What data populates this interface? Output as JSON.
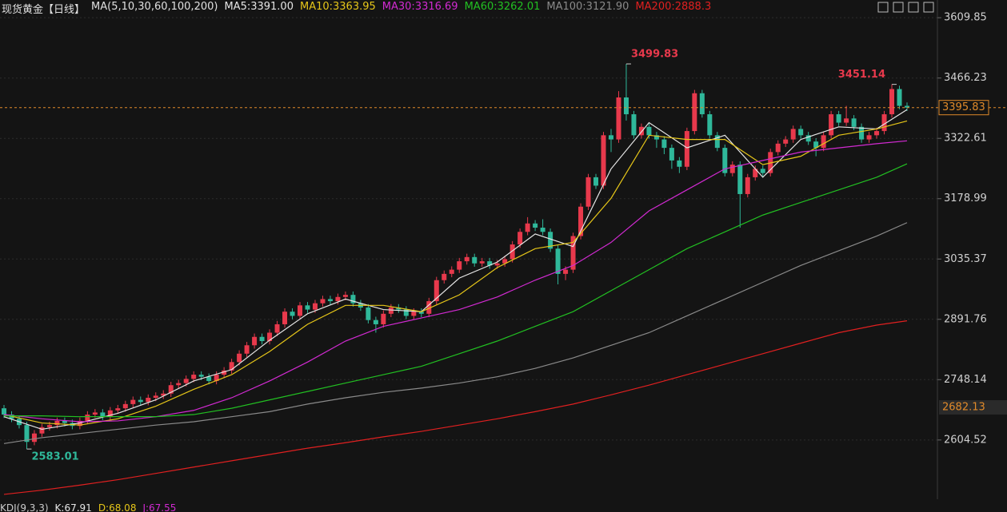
{
  "chart_data": {
    "type": "candlestick",
    "title": "现货黄金【日线】",
    "ma_title": "MA(5,10,30,60,100,200)",
    "up_color": "#e8394c",
    "down_color": "#2fb89a",
    "ylim": [
      2473,
      3652
    ],
    "yticks": [
      3609.85,
      3466.23,
      3322.61,
      3178.99,
      3035.37,
      2891.76,
      2748.14,
      2604.52
    ],
    "grid": true,
    "last_price": 3395.83,
    "level_marker": 2682.13,
    "high_annotations": [
      3499.83,
      3451.14
    ],
    "low_annotations": [
      2583.01
    ],
    "ohlc": [
      [
        2680,
        2688,
        2657,
        2665
      ],
      [
        2665,
        2673,
        2647,
        2655
      ],
      [
        2655,
        2663,
        2632,
        2640
      ],
      [
        2640,
        2648,
        2583.01,
        2600
      ],
      [
        2600,
        2628,
        2592,
        2620
      ],
      [
        2620,
        2643,
        2612,
        2635
      ],
      [
        2635,
        2648,
        2627,
        2640
      ],
      [
        2640,
        2658,
        2632,
        2650
      ],
      [
        2650,
        2658,
        2637,
        2645
      ],
      [
        2645,
        2653,
        2630,
        2638
      ],
      [
        2638,
        2658,
        2630,
        2650
      ],
      [
        2650,
        2673,
        2642,
        2665
      ],
      [
        2665,
        2678,
        2657,
        2670
      ],
      [
        2670,
        2678,
        2652,
        2660
      ],
      [
        2660,
        2683,
        2652,
        2675
      ],
      [
        2675,
        2688,
        2667,
        2680
      ],
      [
        2680,
        2698,
        2672,
        2690
      ],
      [
        2690,
        2708,
        2682,
        2700
      ],
      [
        2700,
        2708,
        2687,
        2695
      ],
      [
        2695,
        2713,
        2687,
        2705
      ],
      [
        2705,
        2718,
        2697,
        2710
      ],
      [
        2710,
        2723,
        2702,
        2715
      ],
      [
        2715,
        2743,
        2707,
        2735
      ],
      [
        2735,
        2748,
        2727,
        2740
      ],
      [
        2740,
        2758,
        2732,
        2750
      ],
      [
        2750,
        2768,
        2742,
        2760
      ],
      [
        2760,
        2768,
        2747,
        2755
      ],
      [
        2755,
        2763,
        2737,
        2745
      ],
      [
        2745,
        2768,
        2737,
        2760
      ],
      [
        2760,
        2778,
        2752,
        2770
      ],
      [
        2770,
        2798,
        2762,
        2790
      ],
      [
        2790,
        2818,
        2782,
        2810
      ],
      [
        2810,
        2838,
        2802,
        2830
      ],
      [
        2830,
        2858,
        2822,
        2850
      ],
      [
        2850,
        2858,
        2832,
        2840
      ],
      [
        2840,
        2868,
        2832,
        2860
      ],
      [
        2860,
        2888,
        2852,
        2880
      ],
      [
        2880,
        2918,
        2872,
        2910
      ],
      [
        2910,
        2918,
        2892,
        2900
      ],
      [
        2900,
        2933,
        2892,
        2925
      ],
      [
        2925,
        2933,
        2907,
        2915
      ],
      [
        2915,
        2938,
        2907,
        2930
      ],
      [
        2930,
        2948,
        2922,
        2940
      ],
      [
        2940,
        2948,
        2927,
        2935
      ],
      [
        2935,
        2953,
        2927,
        2945
      ],
      [
        2945,
        2958,
        2937,
        2950
      ],
      [
        2950,
        2958,
        2922,
        2930
      ],
      [
        2930,
        2938,
        2912,
        2920
      ],
      [
        2920,
        2928,
        2882,
        2890
      ],
      [
        2890,
        2898,
        2860,
        2880
      ],
      [
        2880,
        2913,
        2872,
        2905
      ],
      [
        2905,
        2928,
        2897,
        2920
      ],
      [
        2920,
        2928,
        2907,
        2915
      ],
      [
        2915,
        2923,
        2892,
        2900
      ],
      [
        2900,
        2918,
        2892,
        2910
      ],
      [
        2910,
        2918,
        2897,
        2905
      ],
      [
        2905,
        2943,
        2897,
        2935
      ],
      [
        2935,
        2993,
        2927,
        2985
      ],
      [
        2985,
        3008,
        2977,
        3000
      ],
      [
        3000,
        3018,
        2992,
        3010
      ],
      [
        3010,
        3038,
        3002,
        3030
      ],
      [
        3030,
        3048,
        3022,
        3040
      ],
      [
        3040,
        3048,
        3017,
        3025
      ],
      [
        3025,
        3038,
        3017,
        3030
      ],
      [
        3030,
        3038,
        3012,
        3020
      ],
      [
        3020,
        3033,
        3012,
        3025
      ],
      [
        3025,
        3043,
        3017,
        3035
      ],
      [
        3035,
        3078,
        3027,
        3070
      ],
      [
        3070,
        3108,
        3062,
        3100
      ],
      [
        3100,
        3135,
        3092,
        3120
      ],
      [
        3120,
        3128,
        3102,
        3110
      ],
      [
        3110,
        3130,
        3092,
        3100
      ],
      [
        3100,
        3108,
        3052,
        3060
      ],
      [
        3060,
        3068,
        2975,
        3000
      ],
      [
        3000,
        3018,
        2985,
        3010
      ],
      [
        3010,
        3098,
        3002,
        3090
      ],
      [
        3090,
        3168,
        3082,
        3160
      ],
      [
        3160,
        3238,
        3152,
        3230
      ],
      [
        3230,
        3238,
        3202,
        3210
      ],
      [
        3210,
        3338,
        3202,
        3330
      ],
      [
        3330,
        3345,
        3290,
        3320
      ],
      [
        3320,
        3435,
        3312,
        3420
      ],
      [
        3420,
        3499.83,
        3365,
        3380
      ],
      [
        3380,
        3388,
        3322,
        3330
      ],
      [
        3330,
        3358,
        3322,
        3350
      ],
      [
        3350,
        3358,
        3322,
        3330
      ],
      [
        3330,
        3338,
        3300,
        3320
      ],
      [
        3320,
        3328,
        3285,
        3300
      ],
      [
        3300,
        3308,
        3250,
        3270
      ],
      [
        3270,
        3278,
        3240,
        3255
      ],
      [
        3255,
        3348,
        3247,
        3340
      ],
      [
        3340,
        3438,
        3332,
        3430
      ],
      [
        3430,
        3438,
        3372,
        3380
      ],
      [
        3380,
        3388,
        3322,
        3330
      ],
      [
        3330,
        3338,
        3292,
        3300
      ],
      [
        3300,
        3308,
        3232,
        3240
      ],
      [
        3240,
        3268,
        3232,
        3260
      ],
      [
        3260,
        3268,
        3110,
        3190
      ],
      [
        3190,
        3238,
        3182,
        3230
      ],
      [
        3230,
        3258,
        3222,
        3250
      ],
      [
        3250,
        3258,
        3232,
        3240
      ],
      [
        3240,
        3298,
        3232,
        3290
      ],
      [
        3290,
        3318,
        3282,
        3310
      ],
      [
        3310,
        3328,
        3302,
        3320
      ],
      [
        3320,
        3353,
        3312,
        3345
      ],
      [
        3345,
        3353,
        3322,
        3330
      ],
      [
        3330,
        3338,
        3307,
        3315
      ],
      [
        3315,
        3323,
        3280,
        3300
      ],
      [
        3300,
        3338,
        3292,
        3330
      ],
      [
        3330,
        3388,
        3322,
        3380
      ],
      [
        3380,
        3388,
        3352,
        3360
      ],
      [
        3360,
        3400,
        3352,
        3370
      ],
      [
        3370,
        3378,
        3342,
        3350
      ],
      [
        3350,
        3358,
        3312,
        3320
      ],
      [
        3320,
        3338,
        3312,
        3330
      ],
      [
        3330,
        3348,
        3322,
        3340
      ],
      [
        3340,
        3388,
        3332,
        3380
      ],
      [
        3380,
        3451.14,
        3372,
        3440
      ],
      [
        3440,
        3448,
        3392,
        3400
      ],
      [
        3400,
        3408,
        3388,
        3395.83
      ]
    ],
    "series": [
      {
        "name": "MA5:3391.00",
        "color": "#e6e6e6",
        "x": [
          0,
          5,
          10,
          15,
          20,
          25,
          30,
          35,
          40,
          45,
          50,
          55,
          60,
          65,
          70,
          75,
          80,
          85,
          90,
          95,
          100,
          105,
          110,
          115,
          119
        ],
        "values": [
          2660,
          2630,
          2645,
          2668,
          2700,
          2745,
          2772,
          2842,
          2905,
          2940,
          2915,
          2910,
          2990,
          3028,
          3095,
          3065,
          3250,
          3360,
          3300,
          3330,
          3230,
          3320,
          3350,
          3345,
          3391
        ]
      },
      {
        "name": "MA10:3363.95",
        "color": "#e6c619",
        "x": [
          0,
          5,
          10,
          15,
          20,
          25,
          30,
          35,
          40,
          45,
          50,
          55,
          60,
          65,
          70,
          75,
          80,
          85,
          90,
          95,
          100,
          105,
          110,
          115,
          119
        ],
        "values": [
          2665,
          2645,
          2640,
          2655,
          2685,
          2725,
          2760,
          2815,
          2880,
          2925,
          2925,
          2910,
          2950,
          3015,
          3060,
          3075,
          3180,
          3330,
          3320,
          3320,
          3260,
          3280,
          3330,
          3345,
          3363.95
        ]
      },
      {
        "name": "MA30:3316.69",
        "color": "#d22ad2",
        "x": [
          0,
          5,
          10,
          15,
          20,
          25,
          30,
          35,
          40,
          45,
          50,
          55,
          60,
          65,
          70,
          75,
          80,
          85,
          90,
          95,
          100,
          105,
          110,
          115,
          119
        ],
        "values": [
          2665,
          2655,
          2648,
          2650,
          2660,
          2675,
          2705,
          2745,
          2790,
          2840,
          2875,
          2895,
          2915,
          2945,
          2985,
          3020,
          3075,
          3150,
          3200,
          3250,
          3270,
          3290,
          3300,
          3310,
          3316.69
        ]
      },
      {
        "name": "MA60:3262.01",
        "color": "#22c022",
        "x": [
          0,
          5,
          10,
          15,
          20,
          25,
          30,
          35,
          40,
          45,
          50,
          55,
          60,
          65,
          70,
          75,
          80,
          85,
          90,
          95,
          100,
          105,
          110,
          115,
          119
        ],
        "values": [
          2662,
          2662,
          2660,
          2660,
          2660,
          2665,
          2680,
          2700,
          2720,
          2740,
          2760,
          2780,
          2810,
          2840,
          2875,
          2910,
          2960,
          3010,
          3060,
          3100,
          3140,
          3170,
          3200,
          3230,
          3262.01
        ]
      },
      {
        "name": "MA100:3121.90",
        "color": "#8a8a8a",
        "x": [
          0,
          5,
          10,
          15,
          20,
          25,
          30,
          35,
          40,
          45,
          50,
          55,
          60,
          65,
          70,
          75,
          80,
          85,
          90,
          95,
          100,
          105,
          110,
          115,
          119
        ],
        "values": [
          2596,
          2610,
          2620,
          2630,
          2640,
          2648,
          2660,
          2672,
          2690,
          2705,
          2718,
          2728,
          2740,
          2755,
          2775,
          2800,
          2830,
          2860,
          2900,
          2940,
          2980,
          3020,
          3055,
          3090,
          3121.9
        ]
      },
      {
        "name": "MA200:2888.3",
        "color": "#e02020",
        "x": [
          0,
          5,
          10,
          15,
          20,
          25,
          30,
          35,
          40,
          45,
          50,
          55,
          60,
          65,
          70,
          75,
          80,
          85,
          90,
          95,
          100,
          105,
          110,
          115,
          119
        ],
        "values": [
          2475,
          2485,
          2497,
          2510,
          2525,
          2540,
          2555,
          2570,
          2585,
          2598,
          2612,
          2625,
          2640,
          2655,
          2672,
          2690,
          2712,
          2735,
          2760,
          2785,
          2810,
          2835,
          2860,
          2878,
          2888.3
        ]
      }
    ],
    "indicator": {
      "name": "KDJ(9,3,3)",
      "items": [
        {
          "label": "K:67.91",
          "color": "#e6e6e6"
        },
        {
          "label": "D:68.08",
          "color": "#e6c619"
        },
        {
          "label": "J:67.55",
          "color": "#d22ad2"
        }
      ]
    }
  }
}
